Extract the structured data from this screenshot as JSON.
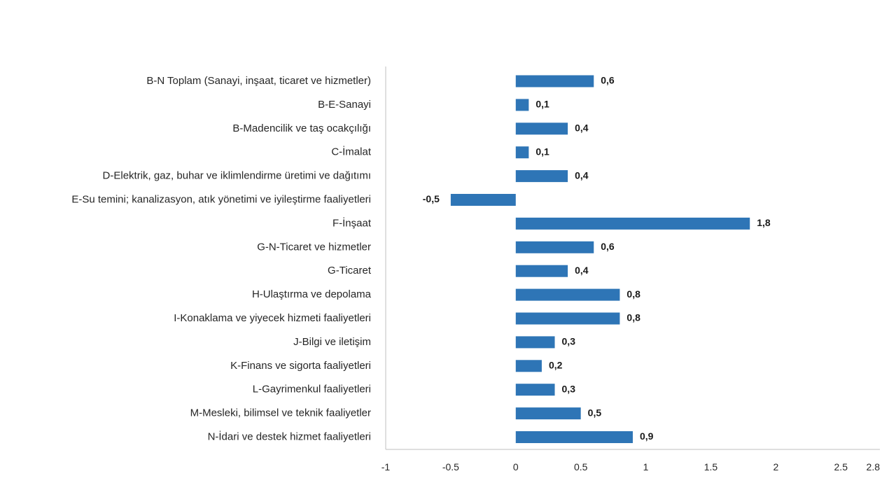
{
  "chart_data": {
    "type": "bar",
    "orientation": "horizontal",
    "title": "",
    "xlabel": "",
    "ylabel": "",
    "xlim": [
      -1,
      2.8
    ],
    "ticks": [
      "-1",
      "-0.5",
      "0",
      "0.5",
      "1",
      "1.5",
      "2",
      "2.5",
      "2.8"
    ],
    "tick_values": [
      -1,
      -0.5,
      0,
      0.5,
      1,
      1.5,
      2,
      2.5,
      2.8
    ],
    "grid": false,
    "bar_color": "#2E75B6",
    "categories": [
      "B-N Toplam (Sanayi, inşaat, ticaret ve hizmetler)",
      "B-E-Sanayi",
      "B-Madencilik ve taş ocakçılığı",
      "C-İmalat",
      "D-Elektrik, gaz, buhar ve iklimlendirme üretimi ve dağıtımı",
      "E-Su temini; kanalizasyon, atık yönetimi ve iyileştirme faaliyetleri",
      "F-İnşaat",
      "G-N-Ticaret ve hizmetler",
      "G-Ticaret",
      "H-Ulaştırma ve depolama",
      "I-Konaklama ve yiyecek hizmeti faaliyetleri",
      "J-Bilgi ve iletişim",
      "K-Finans ve sigorta faaliyetleri",
      "L-Gayrimenkul faaliyetleri",
      "M-Mesleki, bilimsel ve teknik faaliyetler",
      "N-İdari ve destek hizmet faaliyetleri"
    ],
    "values": [
      0.6,
      0.1,
      0.4,
      0.1,
      0.4,
      -0.5,
      1.8,
      0.6,
      0.4,
      0.8,
      0.8,
      0.3,
      0.2,
      0.3,
      0.5,
      0.9
    ],
    "value_labels": [
      "0,6",
      "0,1",
      "0,4",
      "0,1",
      "0,4",
      "-0,5",
      "1,8",
      "0,6",
      "0,4",
      "0,8",
      "0,8",
      "0,3",
      "0,2",
      "0,3",
      "0,5",
      "0,9"
    ]
  }
}
